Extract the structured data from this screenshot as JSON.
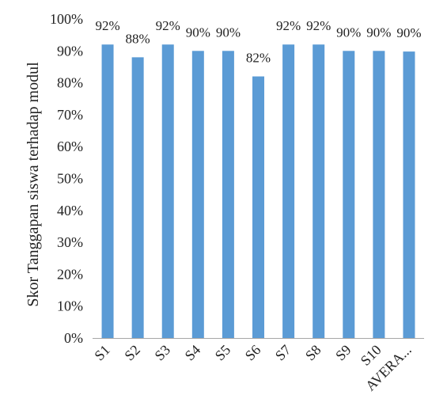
{
  "chart_data": {
    "type": "bar",
    "title": "",
    "xlabel": "",
    "ylabel": "Skor Tanggapan siswa terhadap modul",
    "categories": [
      "S1",
      "S2",
      "S3",
      "S4",
      "S5",
      "S6",
      "S7",
      "S8",
      "S9",
      "S10",
      "AVERA..."
    ],
    "values": [
      92,
      88,
      92,
      90,
      90,
      82,
      92,
      92,
      90,
      90,
      89.8
    ],
    "data_labels": [
      "92%",
      "88%",
      "92%",
      "90%",
      "90%",
      "82%",
      "92%",
      "92%",
      "90%",
      "90%",
      "90%"
    ],
    "y_ticks": [
      "0%",
      "10%",
      "20%",
      "30%",
      "40%",
      "50%",
      "60%",
      "70%",
      "80%",
      "90%",
      "100%"
    ],
    "ylim": [
      0,
      100
    ],
    "unit": "%",
    "grid": false,
    "legend": "none",
    "bar_color": "#5b9bd5"
  }
}
